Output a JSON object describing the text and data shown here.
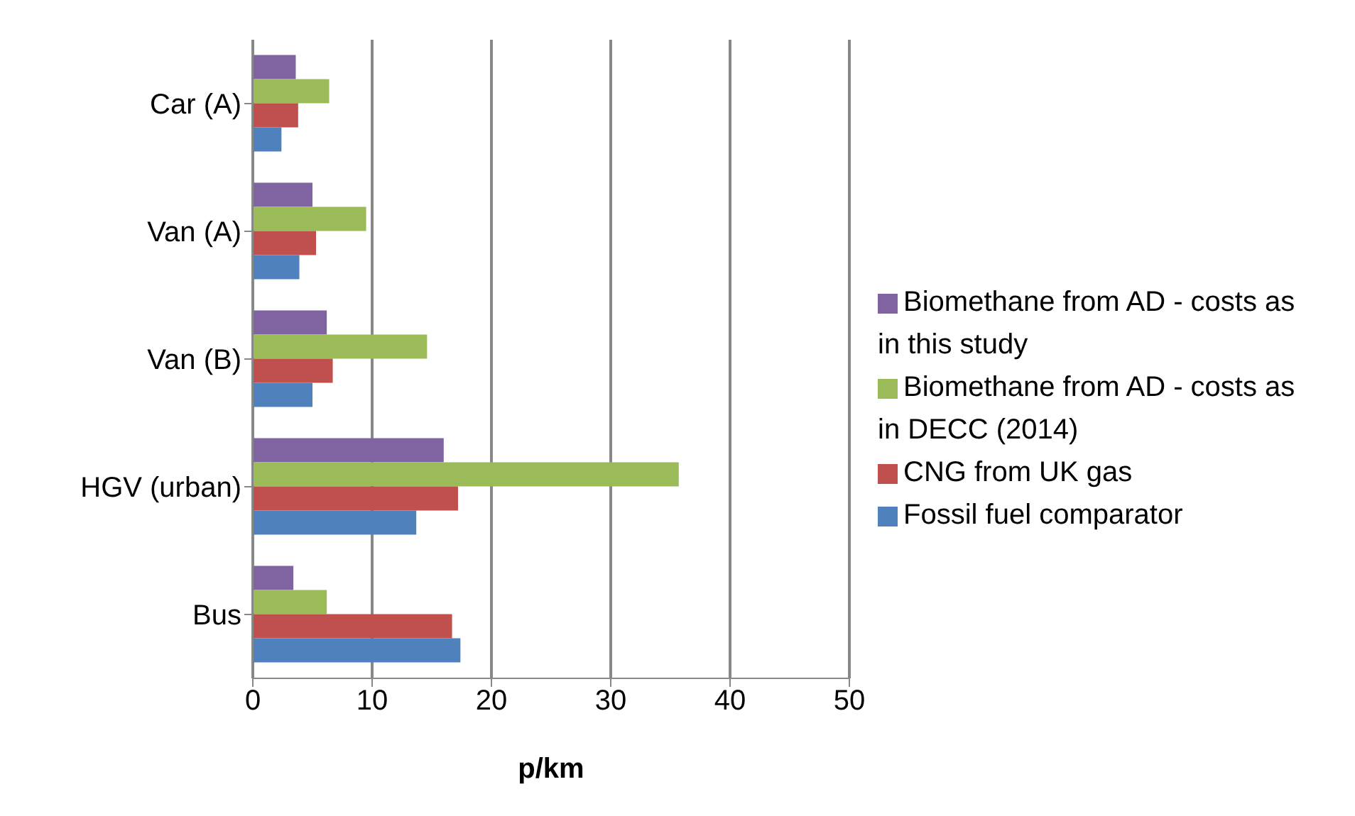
{
  "chart_data": {
    "type": "bar",
    "orientation": "horizontal",
    "xlabel": "p/km",
    "categories": [
      "Car (A)",
      "Van (A)",
      "Van (B)",
      "HGV (urban)",
      "Bus"
    ],
    "series": [
      {
        "name": "Biomethane from AD - costs as in this study",
        "color": "#8064a2",
        "values": [
          3.6,
          5.0,
          6.2,
          16.0,
          3.4
        ]
      },
      {
        "name": "Biomethane from AD - costs as in DECC (2014)",
        "color": "#9bbb59",
        "values": [
          6.4,
          9.5,
          14.6,
          35.7,
          6.2
        ]
      },
      {
        "name": "CNG from UK gas",
        "color": "#c0504d",
        "values": [
          3.8,
          5.3,
          6.7,
          17.2,
          16.7
        ]
      },
      {
        "name": "Fossil fuel comparator",
        "color": "#4f81bd",
        "values": [
          2.4,
          3.9,
          5.0,
          13.7,
          17.4
        ]
      }
    ],
    "xlim": [
      0,
      50
    ],
    "xticks": [
      0,
      10,
      20,
      30,
      40,
      50
    ],
    "grid": "x",
    "legend": "right"
  }
}
